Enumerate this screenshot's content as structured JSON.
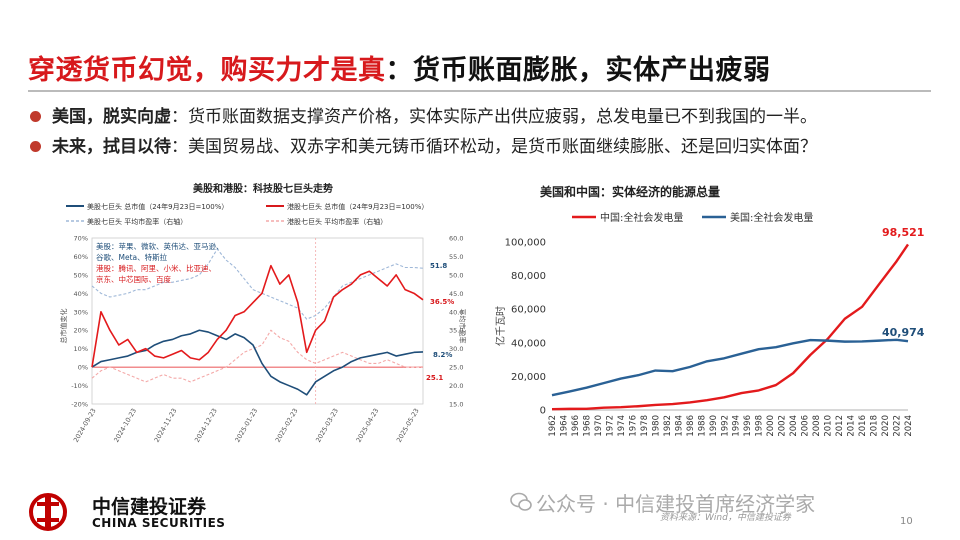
{
  "slide": {
    "title_red": "穿透货币幻觉，购买力才是真",
    "title_rest": "：货币账面膨胀，实体产出疲弱",
    "bullets": [
      {
        "bold": "美国，脱实向虚",
        "text": "：货币账面数据支撑资产价格，实体实际产出供应疲弱，总发电量已不到我国的一半。"
      },
      {
        "bold": "未来，拭目以待",
        "text": "：美国贸易战、双赤字和美元铸币循环松动，是货币账面继续膨胀、还是回归实体面？"
      }
    ],
    "wechat": "公众号 · 中信建投首席经济学家",
    "source": "资料来源：Wind，中信建投证券",
    "page": "10",
    "logo_cn": "中信建投证券",
    "logo_en": "CHINA SECURITIES",
    "colors": {
      "red": "#d7191c",
      "blue": "#1f4e79",
      "lightblue": "#9fb8d8",
      "lightred": "#f4a9a8"
    }
  },
  "chart_data": [
    {
      "type": "line",
      "title": "美股和港股：科技股七巨头走势",
      "legend": [
        "美股七巨头 总市值（24年9月23日=100%）",
        "港股七巨头 总市值（24年9月23日=100%）",
        "美股七巨头 平均市盈率（右轴）",
        "港股七巨头 平均市盈率（右轴）"
      ],
      "ylabel_left": "总市值变化",
      "ylabel_right": "平均市盈率",
      "yticks_left": [
        "70%",
        "60%",
        "50%",
        "40%",
        "30%",
        "20%",
        "10%",
        "0%",
        "-10%",
        "-20%"
      ],
      "yticks_right": [
        "60.0",
        "55.0",
        "50.0",
        "45.0",
        "40.0",
        "35.0",
        "30.0",
        "25.0",
        "20.0",
        "15.0"
      ],
      "ylim_left": [
        -20,
        70
      ],
      "ylim_right": [
        15,
        60
      ],
      "xticks": [
        "2024-09-23",
        "2024-10-23",
        "2024-11-23",
        "2024-12-23",
        "2025-01-23",
        "2025-02-23",
        "2025-03-23",
        "2025-04-23",
        "2025-05-23"
      ],
      "annotation_box": {
        "us_line1": "美股：苹果、微软、英伟达、亚马逊、",
        "us_line2": "谷歌、Meta、特斯拉",
        "hk_line1": "港股：腾讯、阿里、小米、比亚迪、",
        "hk_line2": "京东、中芯国际、百度"
      },
      "end_labels": {
        "us_pe": "51.8",
        "hk_cap": "36.5%",
        "us_cap": "8.2%",
        "hk_pe": "25.1"
      },
      "x": [
        0,
        7,
        14,
        21,
        28,
        35,
        42,
        49,
        56,
        63,
        70,
        77,
        84,
        91,
        98,
        105,
        112,
        119,
        126,
        133,
        140,
        147,
        154,
        161,
        168,
        175,
        182,
        189,
        196,
        203,
        210,
        217,
        224,
        231,
        238,
        245,
        252,
        259
      ],
      "series": [
        {
          "name": "美股七巨头 总市值（24年9月23日=100%）",
          "values": [
            0,
            3,
            4,
            5,
            6,
            8,
            9,
            12,
            14,
            15,
            17,
            18,
            20,
            19,
            17,
            15,
            18,
            16,
            12,
            2,
            -5,
            -8,
            -10,
            -12,
            -15,
            -8,
            -5,
            -2,
            0,
            3,
            5,
            6,
            7,
            8,
            6,
            7,
            8,
            8.2
          ]
        },
        {
          "name": "港股七巨头 总市值（24年9月23日=100%）",
          "values": [
            0,
            30,
            20,
            12,
            15,
            8,
            10,
            6,
            5,
            7,
            9,
            5,
            4,
            8,
            15,
            20,
            28,
            30,
            35,
            40,
            55,
            45,
            50,
            35,
            8,
            20,
            25,
            38,
            42,
            45,
            50,
            52,
            48,
            44,
            50,
            42,
            40,
            36.5
          ]
        },
        {
          "name": "美股七巨头 平均市盈率（右轴）",
          "values": [
            47,
            45,
            44,
            44.5,
            45,
            46,
            46,
            47,
            48,
            48,
            48.5,
            49,
            50,
            53,
            57,
            54,
            52,
            49,
            46,
            45,
            44,
            43,
            42,
            41,
            38,
            39,
            41,
            44,
            47,
            48,
            49,
            50,
            51,
            52,
            53,
            52,
            52,
            51.8
          ]
        },
        {
          "name": "港股七巨头 平均市盈率（右轴）",
          "values": [
            22,
            24,
            25,
            24,
            23,
            22,
            21,
            22,
            23,
            22,
            22,
            21,
            22,
            23,
            24,
            25,
            27,
            29,
            30,
            31,
            35,
            33,
            32,
            29,
            27,
            26,
            27,
            28,
            29,
            28,
            27,
            26,
            26,
            27,
            26,
            25,
            25,
            25.1
          ]
        }
      ]
    },
    {
      "type": "line",
      "title": "美国和中国：实体经济的能源总量",
      "legend": [
        "中国:全社会发电量",
        "美国:全社会发电量"
      ],
      "ylabel": "亿千瓦时",
      "ylim": [
        0,
        100000
      ],
      "yticks": [
        "100,000",
        "80,000",
        "60,000",
        "40,000",
        "20,000",
        "0"
      ],
      "xticks": [
        "1962",
        "1964",
        "1966",
        "1968",
        "1970",
        "1972",
        "1974",
        "1976",
        "1978",
        "1980",
        "1982",
        "1984",
        "1986",
        "1988",
        "1990",
        "1992",
        "1994",
        "1996",
        "1998",
        "2000",
        "2002",
        "2004",
        "2006",
        "2008",
        "2010",
        "2012",
        "2014",
        "2016",
        "2018",
        "2020",
        "2022",
        "2024"
      ],
      "end_labels": {
        "china": "98,521",
        "us": "40,974"
      },
      "x": [
        1962,
        1965,
        1968,
        1971,
        1974,
        1977,
        1980,
        1983,
        1986,
        1989,
        1992,
        1995,
        1998,
        2001,
        2004,
        2007,
        2010,
        2013,
        2016,
        2019,
        2022,
        2024
      ],
      "series": [
        {
          "name": "中国:全社会发电量",
          "values": [
            458,
            676,
            716,
            1384,
            1688,
            2234,
            3006,
            3514,
            4495,
            5848,
            7539,
            10077,
            11670,
            14839,
            21944,
            32816,
            42278,
            54316,
            61425,
            75034,
            88487,
            98521
          ]
        },
        {
          "name": "美国:全社会发电量",
          "values": [
            8800,
            11000,
            13300,
            16000,
            18700,
            20700,
            23500,
            23100,
            25600,
            29000,
            30800,
            33500,
            36200,
            37400,
            39700,
            41600,
            41300,
            40700,
            40800,
            41300,
            41800,
            40974
          ]
        }
      ]
    }
  ]
}
